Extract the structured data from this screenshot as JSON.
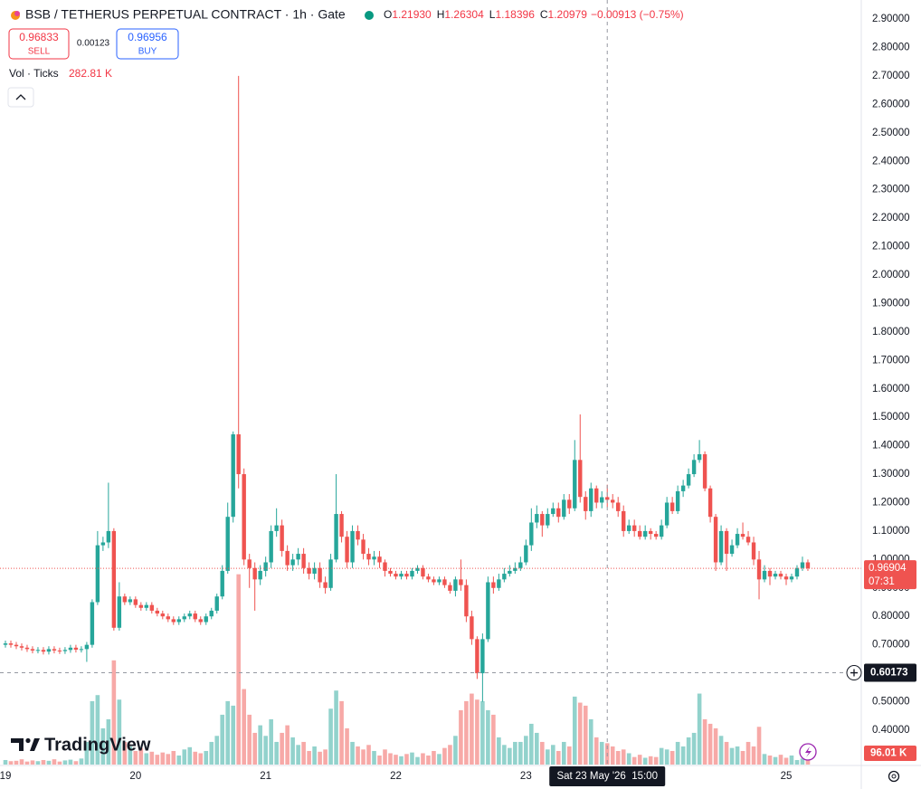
{
  "header": {
    "title": "BSB / TETHERUS PERPETUAL CONTRACT · 1h · Gate",
    "legend": [
      {
        "key": "O",
        "value": 1.2193,
        "label": "1.21930"
      },
      {
        "key": "H",
        "value": 1.26304,
        "label": "1.26304"
      },
      {
        "key": "L",
        "value": 1.18396,
        "label": "1.18396"
      },
      {
        "key": "C",
        "value": 1.20979,
        "label": "1.20979"
      }
    ],
    "change": "−0.00913 (−0.75%)",
    "sell": {
      "price": "0.96833",
      "label": "SELL"
    },
    "spread": "0.00123",
    "buy": {
      "price": "0.96956",
      "label": "BUY"
    },
    "volume_legend": {
      "title": "Vol · Ticks",
      "value": "282.81 K"
    },
    "logo": "TradingView"
  },
  "chart_data": {
    "type": "candlestick",
    "up_color": "#26a69a",
    "down_color": "#ef5350",
    "categories": [
      "19",
      null,
      null,
      null,
      null,
      null,
      null,
      null,
      null,
      null,
      null,
      null,
      null,
      null,
      null,
      null,
      null,
      null,
      null,
      null,
      null,
      null,
      null,
      null,
      "20",
      null,
      null,
      null,
      null,
      null,
      null,
      null,
      null,
      null,
      null,
      null,
      null,
      null,
      null,
      null,
      null,
      null,
      null,
      null,
      null,
      null,
      null,
      null,
      "21",
      null,
      null,
      null,
      null,
      null,
      null,
      null,
      null,
      null,
      null,
      null,
      null,
      null,
      null,
      null,
      null,
      null,
      null,
      null,
      null,
      null,
      null,
      null,
      "22",
      null,
      null,
      null,
      null,
      null,
      null,
      null,
      null,
      null,
      null,
      null,
      null,
      null,
      null,
      null,
      null,
      null,
      null,
      null,
      null,
      null,
      null,
      null,
      "23",
      null,
      null,
      null,
      null,
      null,
      null,
      null,
      null,
      null,
      null,
      null,
      null,
      null,
      null,
      null,
      null,
      null,
      null,
      null,
      null,
      null,
      null,
      null,
      null,
      null,
      null,
      null,
      null,
      null,
      null,
      null,
      null,
      null,
      null,
      null,
      null,
      null,
      null,
      null,
      null,
      null,
      null,
      null,
      null,
      null,
      null,
      null,
      "25",
      null,
      null,
      null,
      null
    ],
    "open": [
      0.7,
      0.705,
      0.7,
      0.695,
      0.69,
      0.685,
      0.68,
      0.682,
      0.676,
      0.685,
      0.68,
      0.678,
      0.682,
      0.69,
      0.683,
      0.685,
      0.7,
      0.85,
      1.05,
      1.06,
      1.1,
      0.76,
      0.87,
      0.85,
      0.86,
      0.84,
      0.83,
      0.84,
      0.82,
      0.81,
      0.8,
      0.79,
      0.78,
      0.79,
      0.8,
      0.81,
      0.79,
      0.78,
      0.8,
      0.82,
      0.87,
      0.96,
      1.15,
      1.44,
      1.3,
      1.0,
      0.97,
      0.93,
      0.96,
      0.99,
      1.1,
      1.12,
      1.03,
      0.98,
      1.0,
      1.02,
      0.97,
      0.95,
      0.97,
      0.92,
      0.9,
      1.0,
      1.16,
      1.08,
      0.99,
      1.1,
      1.07,
      1.02,
      1.0,
      1.01,
      0.99,
      0.96,
      0.95,
      0.94,
      0.95,
      0.94,
      0.96,
      0.97,
      0.94,
      0.93,
      0.92,
      0.93,
      0.91,
      0.89,
      0.93,
      0.91,
      0.8,
      0.72,
      0.6,
      0.72,
      0.92,
      0.9,
      0.93,
      0.95,
      0.96,
      0.97,
      0.99,
      1.05,
      1.13,
      1.16,
      1.12,
      1.16,
      1.18,
      1.15,
      1.21,
      1.18,
      1.35,
      1.22,
      1.17,
      1.25,
      1.2,
      1.2193,
      1.20979,
      1.2,
      1.17,
      1.1,
      1.12,
      1.1,
      1.08,
      1.1,
      1.09,
      1.08,
      1.12,
      1.2,
      1.17,
      1.24,
      1.26,
      1.3,
      1.35,
      1.37,
      1.25,
      1.15,
      0.99,
      1.1,
      1.02,
      1.05,
      1.09,
      1.08,
      1.06,
      1.0,
      0.93,
      0.96,
      0.94,
      0.95,
      0.94,
      0.93,
      0.94,
      0.97,
      0.99
    ],
    "high": [
      0.715,
      0.715,
      0.71,
      0.705,
      0.7,
      0.695,
      0.692,
      0.692,
      0.695,
      0.695,
      0.69,
      0.692,
      0.7,
      0.7,
      0.695,
      0.71,
      0.86,
      1.1,
      1.08,
      1.27,
      1.11,
      0.92,
      0.88,
      0.87,
      0.87,
      0.85,
      0.85,
      0.85,
      0.83,
      0.82,
      0.81,
      0.8,
      0.8,
      0.81,
      0.82,
      0.82,
      0.8,
      0.81,
      0.83,
      0.88,
      0.98,
      1.2,
      1.45,
      2.7,
      1.32,
      1.02,
      0.99,
      0.98,
      1.01,
      1.12,
      1.18,
      1.14,
      1.05,
      1.02,
      1.04,
      1.04,
      0.99,
      0.99,
      0.99,
      0.94,
      1.02,
      1.3,
      1.17,
      1.1,
      1.12,
      1.12,
      1.09,
      1.04,
      1.03,
      1.03,
      1.0,
      0.97,
      0.96,
      0.96,
      0.96,
      0.97,
      0.98,
      0.98,
      0.95,
      0.94,
      0.94,
      0.94,
      0.92,
      0.94,
      1.0,
      0.93,
      0.82,
      0.73,
      0.74,
      0.94,
      0.94,
      0.95,
      0.97,
      0.98,
      0.99,
      1.01,
      1.07,
      1.18,
      1.19,
      1.17,
      1.18,
      1.2,
      1.2,
      1.23,
      1.23,
      1.42,
      1.51,
      1.24,
      1.27,
      1.26,
      1.24,
      1.26304,
      1.23,
      1.22,
      1.19,
      1.14,
      1.14,
      1.12,
      1.12,
      1.11,
      1.1,
      1.14,
      1.22,
      1.22,
      1.26,
      1.28,
      1.32,
      1.37,
      1.42,
      1.38,
      1.26,
      1.16,
      1.12,
      1.11,
      1.07,
      1.11,
      1.13,
      1.1,
      1.08,
      1.03,
      0.98,
      0.97,
      0.96,
      0.96,
      0.95,
      0.95,
      0.98,
      1.01,
      1.0
    ],
    "low": [
      0.69,
      0.69,
      0.685,
      0.68,
      0.675,
      0.67,
      0.67,
      0.666,
      0.666,
      0.67,
      0.668,
      0.668,
      0.672,
      0.673,
      0.673,
      0.64,
      0.69,
      0.84,
      1.03,
      1.04,
      0.75,
      0.75,
      0.84,
      0.84,
      0.83,
      0.82,
      0.82,
      0.81,
      0.8,
      0.79,
      0.78,
      0.77,
      0.77,
      0.78,
      0.79,
      0.78,
      0.77,
      0.77,
      0.79,
      0.81,
      0.86,
      0.95,
      1.13,
      1.25,
      0.98,
      0.9,
      0.82,
      0.91,
      0.94,
      0.97,
      1.08,
      1.01,
      0.96,
      0.96,
      0.98,
      0.95,
      0.93,
      0.93,
      0.9,
      0.88,
      0.89,
      0.99,
      1.06,
      0.97,
      0.97,
      1.05,
      1.0,
      0.98,
      0.98,
      0.97,
      0.94,
      0.94,
      0.93,
      0.93,
      0.93,
      0.93,
      0.95,
      0.93,
      0.92,
      0.91,
      0.91,
      0.9,
      0.88,
      0.87,
      0.89,
      0.78,
      0.7,
      0.58,
      0.5,
      0.71,
      0.88,
      0.89,
      0.92,
      0.94,
      0.95,
      0.96,
      0.98,
      1.03,
      1.11,
      1.08,
      1.11,
      1.15,
      1.13,
      1.14,
      1.16,
      1.17,
      1.2,
      1.14,
      1.15,
      1.18,
      1.18,
      1.18396,
      1.18,
      1.15,
      1.08,
      1.09,
      1.08,
      1.07,
      1.07,
      1.07,
      1.07,
      1.07,
      1.11,
      1.16,
      1.16,
      1.22,
      1.25,
      1.29,
      1.34,
      1.24,
      1.13,
      0.96,
      0.98,
      0.96,
      1.01,
      1.04,
      1.07,
      1.05,
      0.98,
      0.86,
      0.92,
      0.91,
      0.93,
      0.93,
      0.91,
      0.92,
      0.93,
      0.96,
      0.96
    ],
    "close": [
      0.705,
      0.7,
      0.695,
      0.69,
      0.685,
      0.68,
      0.682,
      0.676,
      0.685,
      0.68,
      0.678,
      0.682,
      0.69,
      0.683,
      0.685,
      0.7,
      0.85,
      1.05,
      1.06,
      1.1,
      0.76,
      0.87,
      0.85,
      0.86,
      0.84,
      0.83,
      0.84,
      0.82,
      0.81,
      0.8,
      0.79,
      0.78,
      0.79,
      0.8,
      0.81,
      0.79,
      0.78,
      0.8,
      0.82,
      0.87,
      0.96,
      1.15,
      1.44,
      1.3,
      1.0,
      0.97,
      0.93,
      0.96,
      0.99,
      1.1,
      1.12,
      1.03,
      0.98,
      1.0,
      1.02,
      0.97,
      0.95,
      0.97,
      0.92,
      0.9,
      1.0,
      1.16,
      1.08,
      0.99,
      1.1,
      1.07,
      1.02,
      1.0,
      1.01,
      0.99,
      0.96,
      0.95,
      0.94,
      0.95,
      0.94,
      0.96,
      0.97,
      0.94,
      0.93,
      0.92,
      0.93,
      0.91,
      0.89,
      0.93,
      0.91,
      0.8,
      0.72,
      0.6,
      0.72,
      0.92,
      0.9,
      0.93,
      0.95,
      0.96,
      0.97,
      0.99,
      1.05,
      1.13,
      1.16,
      1.12,
      1.16,
      1.18,
      1.15,
      1.21,
      1.18,
      1.35,
      1.22,
      1.17,
      1.25,
      1.2,
      1.21892,
      1.20979,
      1.2,
      1.17,
      1.1,
      1.12,
      1.1,
      1.08,
      1.1,
      1.09,
      1.08,
      1.12,
      1.2,
      1.17,
      1.24,
      1.26,
      1.3,
      1.35,
      1.37,
      1.25,
      1.15,
      0.99,
      1.1,
      1.02,
      1.05,
      1.09,
      1.08,
      1.06,
      1.0,
      0.93,
      0.96,
      0.94,
      0.95,
      0.94,
      0.93,
      0.94,
      0.97,
      0.99,
      0.96904
    ],
    "volume": [
      60,
      45,
      50,
      70,
      40,
      55,
      45,
      60,
      50,
      70,
      40,
      55,
      65,
      45,
      80,
      300,
      840,
      920,
      480,
      600,
      1380,
      860,
      300,
      240,
      180,
      220,
      150,
      170,
      130,
      160,
      140,
      180,
      120,
      200,
      230,
      170,
      150,
      180,
      300,
      380,
      660,
      840,
      780,
      2520,
      1000,
      660,
      420,
      520,
      380,
      600,
      300,
      420,
      520,
      360,
      260,
      300,
      180,
      240,
      170,
      200,
      740,
      980,
      840,
      480,
      300,
      240,
      200,
      260,
      180,
      120,
      200,
      150,
      130,
      110,
      140,
      160,
      100,
      150,
      120,
      180,
      140,
      220,
      260,
      380,
      720,
      840,
      940,
      860,
      840,
      720,
      660,
      360,
      260,
      220,
      300,
      300,
      380,
      540,
      420,
      300,
      200,
      260,
      180,
      300,
      240,
      900,
      820,
      780,
      600,
      360,
      300,
      282.81,
      240,
      180,
      200,
      150,
      100,
      130,
      90,
      110,
      100,
      220,
      200,
      180,
      300,
      240,
      360,
      420,
      940,
      600,
      540,
      480,
      380,
      300,
      220,
      240,
      180,
      300,
      240,
      500,
      140,
      120,
      100,
      130,
      90,
      120,
      60,
      80,
      96.01
    ],
    "ylim": [
      0.279,
      2.967
    ],
    "yticks": [
      {
        "value": 0.4,
        "label": "0.40000"
      },
      {
        "value": 0.5,
        "label": "0.50000"
      },
      {
        "value": 0.6,
        "label": "0.60000"
      },
      {
        "value": 0.7,
        "label": "0.70000"
      },
      {
        "value": 0.8,
        "label": "0.80000"
      },
      {
        "value": 0.9,
        "label": "0.90000"
      },
      {
        "value": 1.0,
        "label": "1.00000"
      },
      {
        "value": 1.1,
        "label": "1.10000"
      },
      {
        "value": 1.2,
        "label": "1.20000"
      },
      {
        "value": 1.3,
        "label": "1.30000"
      },
      {
        "value": 1.4,
        "label": "1.40000"
      },
      {
        "value": 1.5,
        "label": "1.50000"
      },
      {
        "value": 1.6,
        "label": "1.60000"
      },
      {
        "value": 1.7,
        "label": "1.70000"
      },
      {
        "value": 1.8,
        "label": "1.80000"
      },
      {
        "value": 1.9,
        "label": "1.90000"
      },
      {
        "value": 2.0,
        "label": "2.00000"
      },
      {
        "value": 2.1,
        "label": "2.10000"
      },
      {
        "value": 2.2,
        "label": "2.20000"
      },
      {
        "value": 2.3,
        "label": "2.30000"
      },
      {
        "value": 2.4,
        "label": "2.40000"
      },
      {
        "value": 2.5,
        "label": "2.50000"
      },
      {
        "value": 2.6,
        "label": "2.60000"
      },
      {
        "value": 2.7,
        "label": "2.70000"
      },
      {
        "value": 2.8,
        "label": "2.80000"
      },
      {
        "value": 2.9,
        "label": "2.90000"
      }
    ],
    "volume_lim": [
      0,
      2600
    ],
    "last_price": {
      "value": 0.96904,
      "label": "0.96904"
    },
    "countdown": "07:31",
    "last_volume_label": "96.01 K",
    "crosshair": {
      "time": "Sat 23 May '26  15:00",
      "price": {
        "value": 0.60173,
        "label": "0.60173"
      }
    }
  }
}
